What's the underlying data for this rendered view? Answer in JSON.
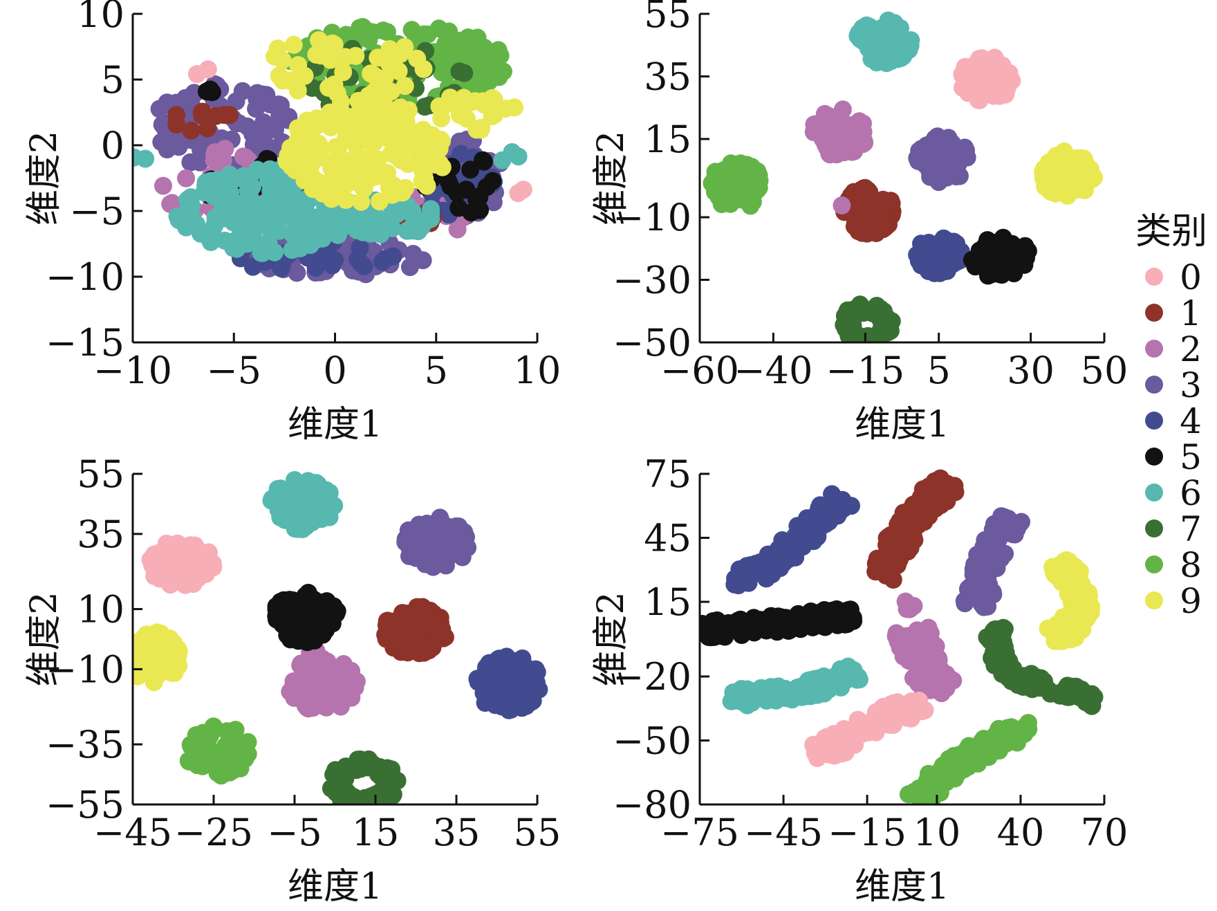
{
  "legend": {
    "title": "类别",
    "entries": [
      {
        "label": "0",
        "color": "#f8aeb7"
      },
      {
        "label": "1",
        "color": "#8e3329"
      },
      {
        "label": "2",
        "color": "#b574ae"
      },
      {
        "label": "3",
        "color": "#6b5a9d"
      },
      {
        "label": "4",
        "color": "#424b8f"
      },
      {
        "label": "5",
        "color": "#121212"
      },
      {
        "label": "6",
        "color": "#57b8b0"
      },
      {
        "label": "7",
        "color": "#3a6f33"
      },
      {
        "label": "8",
        "color": "#63b446"
      },
      {
        "label": "9",
        "color": "#e9e852"
      }
    ]
  },
  "chart_data": [
    {
      "type": "scatter",
      "panel": "top-left",
      "xlabel": "维度1",
      "ylabel": "维度2",
      "xlim": [
        -10,
        10
      ],
      "ylim": [
        -15,
        10
      ],
      "xticks": [
        -10,
        -5,
        0,
        5,
        10
      ],
      "yticks": [
        -15,
        -10,
        -5,
        0,
        5,
        10
      ],
      "xtick_labels": [
        "−10",
        "−5",
        "0",
        "5",
        "10"
      ],
      "ytick_labels": [
        "−15",
        "−10",
        "−5",
        "0",
        "5",
        "10"
      ],
      "series": [
        {
          "name": "3",
          "clusters": [
            {
              "cx": -5.5,
              "cy": 1.5,
              "rx": 3.5,
              "ry": 3.2,
              "n": 90
            },
            {
              "cx": 0,
              "cy": -8.5,
              "rx": 4.5,
              "ry": 1.4,
              "n": 60
            },
            {
              "cx": 6.5,
              "cy": -2.5,
              "rx": 1.8,
              "ry": 3,
              "n": 60
            }
          ]
        },
        {
          "name": "2",
          "clusters": [
            {
              "cx": -6,
              "cy": -3,
              "rx": 2.5,
              "ry": 3,
              "n": 25
            },
            {
              "cx": 5,
              "cy": -5,
              "rx": 2,
              "ry": 2,
              "n": 20
            }
          ]
        },
        {
          "name": "4",
          "clusters": [
            {
              "cx": -1,
              "cy": -8.5,
              "rx": 4,
              "ry": 1.2,
              "n": 30
            },
            {
              "cx": 6,
              "cy": -3,
              "rx": 2,
              "ry": 2.5,
              "n": 30
            }
          ]
        },
        {
          "name": "1",
          "clusters": [
            {
              "cx": -6.5,
              "cy": 2,
              "rx": 1.5,
              "ry": 1.5,
              "n": 10
            },
            {
              "cx": 4,
              "cy": -6,
              "rx": 1.5,
              "ry": 1,
              "n": 8
            }
          ]
        },
        {
          "name": "5",
          "clusters": [
            {
              "cx": -4,
              "cy": -3,
              "rx": 2.5,
              "ry": 2.5,
              "n": 25
            },
            {
              "cx": 6,
              "cy": -3,
              "rx": 2,
              "ry": 2.5,
              "n": 25
            },
            {
              "cx": -6.5,
              "cy": 4,
              "rx": 0.5,
              "ry": 0.5,
              "n": 3
            }
          ]
        },
        {
          "name": "8",
          "clusters": [
            {
              "cx": 3,
              "cy": 6.3,
              "rx": 5.5,
              "ry": 3,
              "n": 200
            }
          ]
        },
        {
          "name": "7",
          "clusters": [
            {
              "cx": 2.5,
              "cy": 5,
              "rx": 4,
              "ry": 3,
              "n": 40
            }
          ]
        },
        {
          "name": "0",
          "clusters": [
            {
              "cx": -6.5,
              "cy": 5.5,
              "rx": 0.5,
              "ry": 0.5,
              "n": 2
            },
            {
              "cx": 9,
              "cy": -3.3,
              "rx": 0.4,
              "ry": 0.4,
              "n": 2
            }
          ]
        },
        {
          "name": "6",
          "clusters": [
            {
              "cx": -3.5,
              "cy": -5,
              "rx": 4.5,
              "ry": 3.2,
              "n": 170
            },
            {
              "cx": 2.5,
              "cy": -5.5,
              "rx": 2.5,
              "ry": 1.5,
              "n": 40
            },
            {
              "cx": -9.5,
              "cy": -1,
              "rx": 0.5,
              "ry": 0.5,
              "n": 2
            },
            {
              "cx": 8.5,
              "cy": -1,
              "rx": 0.6,
              "ry": 0.6,
              "n": 3
            }
          ]
        },
        {
          "name": "9",
          "clusters": [
            {
              "cx": 1.5,
              "cy": -0.5,
              "rx": 4,
              "ry": 4,
              "n": 180
            },
            {
              "cx": 0.5,
              "cy": 6,
              "rx": 4,
              "ry": 2.5,
              "n": 40
            },
            {
              "cx": 7,
              "cy": 2.5,
              "rx": 2,
              "ry": 1.5,
              "n": 25
            }
          ]
        }
      ]
    },
    {
      "type": "scatter",
      "panel": "top-right",
      "xlabel": "维度1",
      "ylabel": "维度2",
      "xlim": [
        -60,
        50
      ],
      "ylim": [
        -50,
        55
      ],
      "xticks": [
        -60,
        -40,
        -15,
        5,
        30,
        50
      ],
      "yticks": [
        -50,
        -30,
        -10,
        15,
        35,
        55
      ],
      "xtick_labels": [
        "−60",
        "−40",
        "−15",
        "5",
        "30",
        "50"
      ],
      "ytick_labels": [
        "−50",
        "−30",
        "−10",
        "15",
        "35",
        "55"
      ],
      "series": [
        {
          "name": "0",
          "clusters": [
            {
              "cx": 18,
              "cy": 34,
              "rx": 7,
              "ry": 7.5,
              "n": 70
            }
          ]
        },
        {
          "name": "1",
          "clusters": [
            {
              "cx": -14,
              "cy": -8,
              "rx": 7,
              "ry": 7.5,
              "n": 70
            }
          ]
        },
        {
          "name": "2",
          "clusters": [
            {
              "cx": -22,
              "cy": 17,
              "rx": 7.5,
              "ry": 7.5,
              "n": 75
            },
            {
              "cx": -21,
              "cy": -6,
              "rx": 0.5,
              "ry": 0.5,
              "n": 1
            }
          ]
        },
        {
          "name": "3",
          "clusters": [
            {
              "cx": 6,
              "cy": 8.5,
              "rx": 7,
              "ry": 7.5,
              "n": 75
            }
          ]
        },
        {
          "name": "4",
          "clusters": [
            {
              "cx": 5,
              "cy": -22,
              "rx": 6.5,
              "ry": 6,
              "n": 65
            }
          ]
        },
        {
          "name": "5",
          "clusters": [
            {
              "cx": 22,
              "cy": -23,
              "rx": 8,
              "ry": 6.5,
              "n": 75
            }
          ]
        },
        {
          "name": "6",
          "clusters": [
            {
              "cx": -10,
              "cy": 46,
              "rx": 7.5,
              "ry": 7,
              "n": 70
            }
          ]
        },
        {
          "name": "7",
          "clusters": [
            {
              "cx": -14.5,
              "cy": -44,
              "rx": 7,
              "ry": 6.5,
              "n": 70,
              "ring": true
            }
          ]
        },
        {
          "name": "8",
          "clusters": [
            {
              "cx": -50,
              "cy": 0,
              "rx": 7.5,
              "ry": 7.5,
              "n": 75
            }
          ]
        },
        {
          "name": "9",
          "clusters": [
            {
              "cx": 40,
              "cy": 4,
              "rx": 7.5,
              "ry": 7.5,
              "n": 75
            }
          ]
        }
      ]
    },
    {
      "type": "scatter",
      "panel": "bottom-left",
      "xlabel": "维度1",
      "ylabel": "维度2",
      "xlim": [
        -45,
        55
      ],
      "ylim": [
        -55,
        55
      ],
      "xticks": [
        -45,
        -25,
        -5,
        15,
        35,
        55
      ],
      "yticks": [
        -55,
        -35,
        -10,
        10,
        35,
        55
      ],
      "xtick_labels": [
        "−45",
        "−25",
        "−5",
        "15",
        "35",
        "55"
      ],
      "ytick_labels": [
        "−55",
        "−35",
        "−10",
        "10",
        "35",
        "55"
      ],
      "series": [
        {
          "name": "0",
          "clusters": [
            {
              "cx": -33,
              "cy": 25,
              "rx": 8,
              "ry": 8,
              "n": 80
            }
          ]
        },
        {
          "name": "1",
          "clusters": [
            {
              "cx": 25,
              "cy": 3,
              "rx": 8,
              "ry": 8.5,
              "n": 80
            }
          ]
        },
        {
          "name": "2",
          "clusters": [
            {
              "cx": 2,
              "cy": -15,
              "rx": 8.5,
              "ry": 9,
              "n": 80
            },
            {
              "cx": -0.5,
              "cy": -4,
              "rx": 1,
              "ry": 1.5,
              "n": 3
            }
          ]
        },
        {
          "name": "3",
          "clusters": [
            {
              "cx": 30,
              "cy": 32,
              "rx": 8,
              "ry": 8.5,
              "n": 80
            }
          ]
        },
        {
          "name": "4",
          "clusters": [
            {
              "cx": 48,
              "cy": -15,
              "rx": 8,
              "ry": 9.5,
              "n": 80
            }
          ]
        },
        {
          "name": "5",
          "clusters": [
            {
              "cx": -2,
              "cy": 7,
              "rx": 8.5,
              "ry": 8.5,
              "n": 80
            }
          ]
        },
        {
          "name": "6",
          "clusters": [
            {
              "cx": -3,
              "cy": 45,
              "rx": 8,
              "ry": 8.5,
              "n": 80
            }
          ]
        },
        {
          "name": "7",
          "clusters": [
            {
              "cx": 12,
              "cy": -48,
              "rx": 8.5,
              "ry": 8.5,
              "n": 80,
              "ring": true
            }
          ]
        },
        {
          "name": "8",
          "clusters": [
            {
              "cx": -24,
              "cy": -37,
              "rx": 8,
              "ry": 8.5,
              "n": 80
            }
          ]
        },
        {
          "name": "9",
          "clusters": [
            {
              "cx": -40,
              "cy": -6,
              "rx": 7,
              "ry": 8.5,
              "n": 70
            }
          ]
        }
      ]
    },
    {
      "type": "scatter",
      "panel": "bottom-right",
      "xlabel": "维度1",
      "ylabel": "维度2",
      "xlim": [
        -75,
        70
      ],
      "ylim": [
        -80,
        75
      ],
      "xticks": [
        -75,
        -45,
        -15,
        10,
        40,
        70
      ],
      "yticks": [
        -80,
        -50,
        -20,
        15,
        45,
        75
      ],
      "xtick_labels": [
        "−75",
        "−45",
        "−15",
        "10",
        "40",
        "70"
      ],
      "ytick_labels": [
        "−80",
        "−50",
        "−20",
        "15",
        "45",
        "75"
      ],
      "series": [
        {
          "name": "4",
          "clusters": [
            {
              "path": [
                [
                  -64,
                  26
                ],
                [
                  -52,
                  30
                ],
                [
                  -42,
                  41
                ],
                [
                  -33,
                  52
                ],
                [
                  -24,
                  63
                ]
              ],
              "width": 4.5,
              "n": 110
            }
          ]
        },
        {
          "name": "5",
          "clusters": [
            {
              "path": [
                [
                  -74,
                  2
                ],
                [
                  -60,
                  3
                ],
                [
                  -45,
                  5
                ],
                [
                  -32,
                  7
                ],
                [
                  -20,
                  8
                ]
              ],
              "width": 4,
              "n": 120
            }
          ]
        },
        {
          "name": "6",
          "clusters": [
            {
              "path": [
                [
                  -67,
                  -29
                ],
                [
                  -55,
                  -30
                ],
                [
                  -42,
                  -27
                ],
                [
                  -30,
                  -24
                ],
                [
                  -19,
                  -18
                ]
              ],
              "width": 4,
              "n": 110
            }
          ]
        },
        {
          "name": "1",
          "clusters": [
            {
              "path": [
                [
                  -10,
                  27
                ],
                [
                  -5,
                  39
                ],
                [
                  0,
                  52
                ],
                [
                  7,
                  63
                ],
                [
                  16,
                  71
                ]
              ],
              "width": 5,
              "n": 110
            }
          ]
        },
        {
          "name": "3",
          "clusters": [
            {
              "path": [
                [
                  24,
                  13
                ],
                [
                  27,
                  25
                ],
                [
                  29,
                  37
                ],
                [
                  33,
                  47
                ],
                [
                  37,
                  55
                ]
              ],
              "width": 5,
              "n": 100
            }
          ]
        },
        {
          "name": "2",
          "clusters": [
            {
              "path": [
                [
                  1,
                  3
                ],
                [
                  4,
                  -10
                ],
                [
                  7,
                  -20
                ],
                [
                  13,
                  -27
                ]
              ],
              "width": 6.5,
              "n": 100
            },
            {
              "cx": 0,
              "cy": 14,
              "rx": 2.5,
              "ry": 2.5,
              "n": 6
            }
          ]
        },
        {
          "name": "9",
          "clusters": [
            {
              "path": [
                [
                  53,
                  33
                ],
                [
                  59,
                  25
                ],
                [
                  62,
                  14
                ],
                [
                  58,
                  2
                ],
                [
                  51,
                  -2
                ]
              ],
              "width": 4.5,
              "n": 100
            }
          ]
        },
        {
          "name": "7",
          "clusters": [
            {
              "path": [
                [
                  31,
                  3
                ],
                [
                  32,
                  -10
                ],
                [
                  37,
                  -20
                ],
                [
                  48,
                  -24
                ],
                [
                  60,
                  -28
                ],
                [
                  67,
                  -31
                ]
              ],
              "width": 3.5,
              "n": 100
            }
          ]
        },
        {
          "name": "0",
          "clusters": [
            {
              "path": [
                [
                  -34,
                  -58
                ],
                [
                  -26,
                  -52
                ],
                [
                  -18,
                  -45
                ],
                [
                  -8,
                  -39
                ],
                [
                  5,
                  -33
                ]
              ],
              "width": 5,
              "n": 100
            }
          ]
        },
        {
          "name": "8",
          "clusters": [
            {
              "path": [
                [
                  3,
                  -78
                ],
                [
                  9,
                  -70
                ],
                [
                  17,
                  -62
                ],
                [
                  26,
                  -54
                ],
                [
                  35,
                  -48
                ],
                [
                  44,
                  -45
                ]
              ],
              "width": 4.5,
              "n": 110
            }
          ]
        }
      ]
    }
  ]
}
